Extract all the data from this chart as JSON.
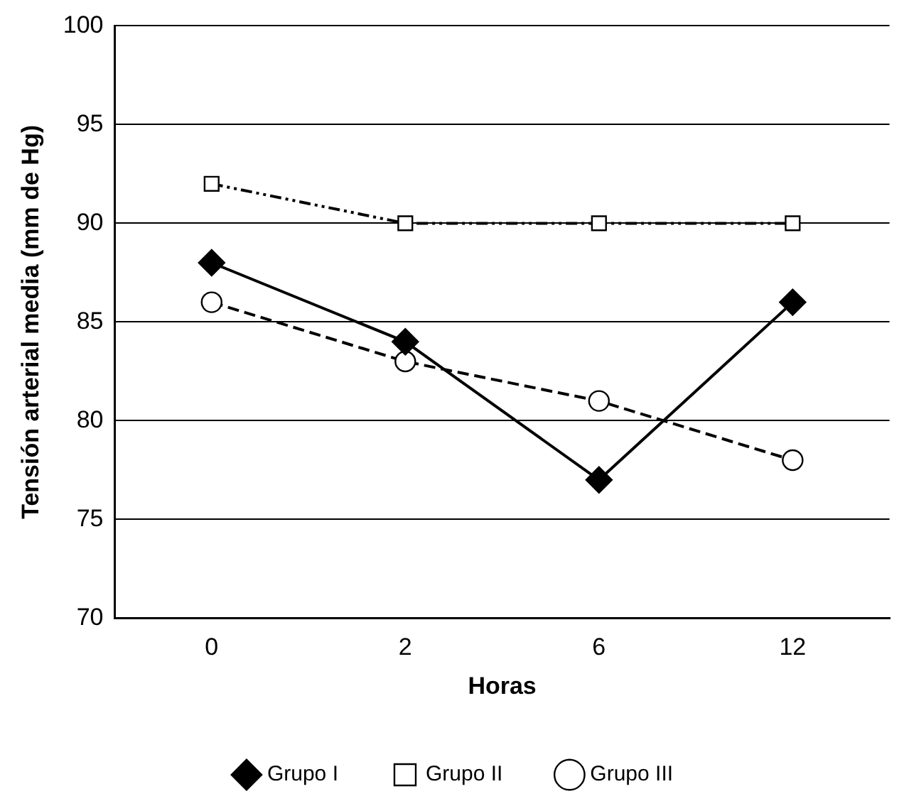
{
  "chart_data": {
    "type": "line",
    "xlabel": "Horas",
    "ylabel": "Tensión arterial media (mm de Hg)",
    "categories": [
      "0",
      "2",
      "6",
      "12"
    ],
    "series": [
      {
        "name": "Grupo I",
        "color": "#000000",
        "values": [
          88,
          84,
          77,
          86
        ],
        "marker": "diamond",
        "line_style": "solid"
      },
      {
        "name": "Grupo II",
        "color": "#000000",
        "values": [
          92,
          90,
          90,
          90
        ],
        "marker": "square",
        "line_style": "dotted"
      },
      {
        "name": "Grupo III",
        "color": "#000000",
        "values": [
          86,
          83,
          81,
          78
        ],
        "marker": "circle",
        "line_style": "dashed"
      }
    ],
    "ylim": [
      70,
      100
    ],
    "yticks": [
      70,
      75,
      80,
      85,
      90,
      95,
      100
    ],
    "grid": "y",
    "legend": "bottom"
  }
}
